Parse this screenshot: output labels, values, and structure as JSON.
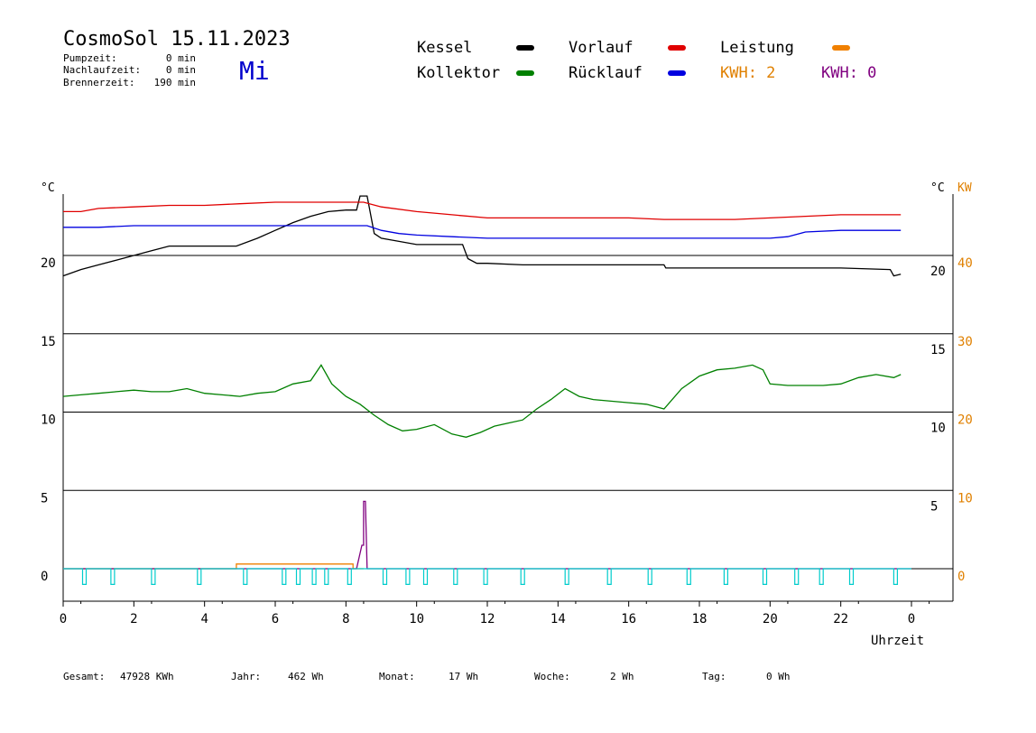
{
  "header": {
    "title": "CosmoSol 15.11.2023",
    "weekday": "Mi",
    "stats": [
      {
        "label": "Pumpzeit:",
        "value": "0 min"
      },
      {
        "label": "Nachlaufzeit:",
        "value": "0 min"
      },
      {
        "label": "Brennerzeit:",
        "value": "190 min"
      }
    ]
  },
  "legend": [
    {
      "label": "Kessel",
      "color": "#000000"
    },
    {
      "label": "Vorlauf",
      "color": "#e00000"
    },
    {
      "label": "Leistung",
      "color": "#f08000"
    },
    {
      "label": "Kollektor",
      "color": "#008000"
    },
    {
      "label": "Rücklauf",
      "color": "#0000e0"
    }
  ],
  "kwh_labels": [
    {
      "text": "KWH: 2",
      "color": "#e08000"
    },
    {
      "text": "KWH: 0",
      "color": "#800080"
    }
  ],
  "footer": [
    {
      "label": "Gesamt:",
      "value": "47928 KWh"
    },
    {
      "label": "Jahr:",
      "value": "462 Wh"
    },
    {
      "label": "Monat:",
      "value": "17 Wh"
    },
    {
      "label": "Woche:",
      "value": "2 Wh"
    },
    {
      "label": "Tag:",
      "value": "0 Wh"
    }
  ],
  "chart_data": {
    "type": "line",
    "title": "CosmoSol 15.11.2023",
    "xlabel": "Uhrzeit",
    "xlim": [
      0,
      24
    ],
    "x_ticks": [
      "0",
      "2",
      "4",
      "6",
      "8",
      "10",
      "12",
      "14",
      "16",
      "18",
      "20",
      "22",
      "0"
    ],
    "y_unit_left": "°C",
    "y_unit_right_temp": "°C",
    "y_unit_right_power": "KW",
    "ylim": [
      -1.8,
      24
    ],
    "y_ticks_left": [
      "0",
      "5",
      "10",
      "15",
      "20"
    ],
    "y_ticks_right_temp": [
      "5",
      "10",
      "15",
      "20"
    ],
    "y_ticks_right_power": [
      "0",
      "10",
      "20",
      "30",
      "40"
    ],
    "grid": true,
    "series": [
      {
        "name": "Kessel",
        "color": "#000000",
        "x": [
          0,
          0.5,
          1,
          1.5,
          2,
          2.5,
          3,
          4,
          4.9,
          5.5,
          6,
          6.5,
          7,
          7.5,
          8,
          8.3,
          8.4,
          8.6,
          8.8,
          9,
          9.5,
          10,
          11.3,
          11.45,
          11.7,
          12,
          13,
          14,
          15,
          16,
          17,
          17.05,
          18,
          20,
          22,
          23.4,
          23.5,
          23.7
        ],
        "y": [
          18.7,
          19.1,
          19.4,
          19.7,
          20,
          20.3,
          20.6,
          20.6,
          20.6,
          21.1,
          21.6,
          22.1,
          22.5,
          22.8,
          22.9,
          22.9,
          23.8,
          23.8,
          21.4,
          21.1,
          20.9,
          20.7,
          20.7,
          19.8,
          19.5,
          19.5,
          19.4,
          19.4,
          19.4,
          19.4,
          19.4,
          19.2,
          19.2,
          19.2,
          19.2,
          19.1,
          18.7,
          18.8
        ]
      },
      {
        "name": "Vorlauf",
        "color": "#e00000",
        "x": [
          0,
          0.5,
          1,
          2,
          3,
          4,
          5,
          6,
          7,
          8,
          8.5,
          9,
          10,
          11,
          12,
          13,
          14,
          15,
          16,
          17,
          18,
          19,
          20,
          21,
          22,
          23,
          23.7
        ],
        "y": [
          22.8,
          22.8,
          23,
          23.1,
          23.2,
          23.2,
          23.3,
          23.4,
          23.4,
          23.4,
          23.4,
          23.1,
          22.8,
          22.6,
          22.4,
          22.4,
          22.4,
          22.4,
          22.4,
          22.3,
          22.3,
          22.3,
          22.4,
          22.5,
          22.6,
          22.6,
          22.6
        ]
      },
      {
        "name": "Rücklauf",
        "color": "#0000e0",
        "x": [
          0,
          1,
          2,
          3,
          4,
          5,
          6,
          7,
          8,
          8.6,
          9,
          9.5,
          10,
          11,
          12,
          13,
          14,
          15,
          16,
          17,
          18,
          19,
          20,
          20.5,
          21,
          22,
          23,
          23.7
        ],
        "y": [
          21.8,
          21.8,
          21.9,
          21.9,
          21.9,
          21.9,
          21.9,
          21.9,
          21.9,
          21.9,
          21.6,
          21.4,
          21.3,
          21.2,
          21.1,
          21.1,
          21.1,
          21.1,
          21.1,
          21.1,
          21.1,
          21.1,
          21.1,
          21.2,
          21.5,
          21.6,
          21.6,
          21.6
        ]
      },
      {
        "name": "Kollektor",
        "color": "#008000",
        "x": [
          0,
          0.5,
          1,
          1.5,
          2,
          2.5,
          3,
          3.5,
          4,
          4.5,
          5,
          5.5,
          6,
          6.5,
          7,
          7.3,
          7.6,
          8,
          8.4,
          8.8,
          9.2,
          9.6,
          10,
          10.5,
          11,
          11.4,
          11.8,
          12.2,
          12.6,
          13,
          13.4,
          13.8,
          14.2,
          14.6,
          15,
          15.5,
          16,
          16.5,
          17,
          17.5,
          18,
          18.5,
          19,
          19.5,
          19.8,
          20,
          20.5,
          21,
          21.5,
          22,
          22.5,
          23,
          23.5,
          23.7
        ],
        "y": [
          11,
          11.1,
          11.2,
          11.3,
          11.4,
          11.3,
          11.3,
          11.5,
          11.2,
          11.1,
          11.0,
          11.2,
          11.3,
          11.8,
          12.0,
          13.0,
          11.8,
          11.0,
          10.5,
          9.8,
          9.2,
          8.8,
          8.9,
          9.2,
          8.6,
          8.4,
          8.7,
          9.1,
          9.3,
          9.5,
          10.2,
          10.8,
          11.5,
          11.0,
          10.8,
          10.7,
          10.6,
          10.5,
          10.2,
          11.5,
          12.3,
          12.7,
          12.8,
          13.0,
          12.7,
          11.8,
          11.7,
          11.7,
          11.7,
          11.8,
          12.2,
          12.4,
          12.2,
          12.4
        ]
      },
      {
        "name": "Leistung",
        "color": "#f08000",
        "x": [
          0,
          4.9,
          4.9,
          8.2,
          8.2,
          8.5
        ],
        "y": [
          0,
          0,
          0.3,
          0.3,
          0,
          0
        ]
      },
      {
        "name": "KWH 0",
        "color": "#800080",
        "x": [
          0,
          8.3,
          8.45,
          8.5,
          8.5,
          8.55,
          8.6,
          24
        ],
        "y": [
          0,
          0,
          1.5,
          1.5,
          4.3,
          4.3,
          0,
          0
        ]
      },
      {
        "name": "Pumpe",
        "color": "#00cccc",
        "pulses_x": [
          0.55,
          1.35,
          2.5,
          3.8,
          5.1,
          6.2,
          6.6,
          7.05,
          7.4,
          8.05,
          9.05,
          9.7,
          10.2,
          11.05,
          11.9,
          12.95,
          14.2,
          15.4,
          16.55,
          17.65,
          18.7,
          19.8,
          20.7,
          21.4,
          22.25,
          23.5
        ],
        "baseline": 0,
        "pulse_depth": -1
      }
    ]
  }
}
